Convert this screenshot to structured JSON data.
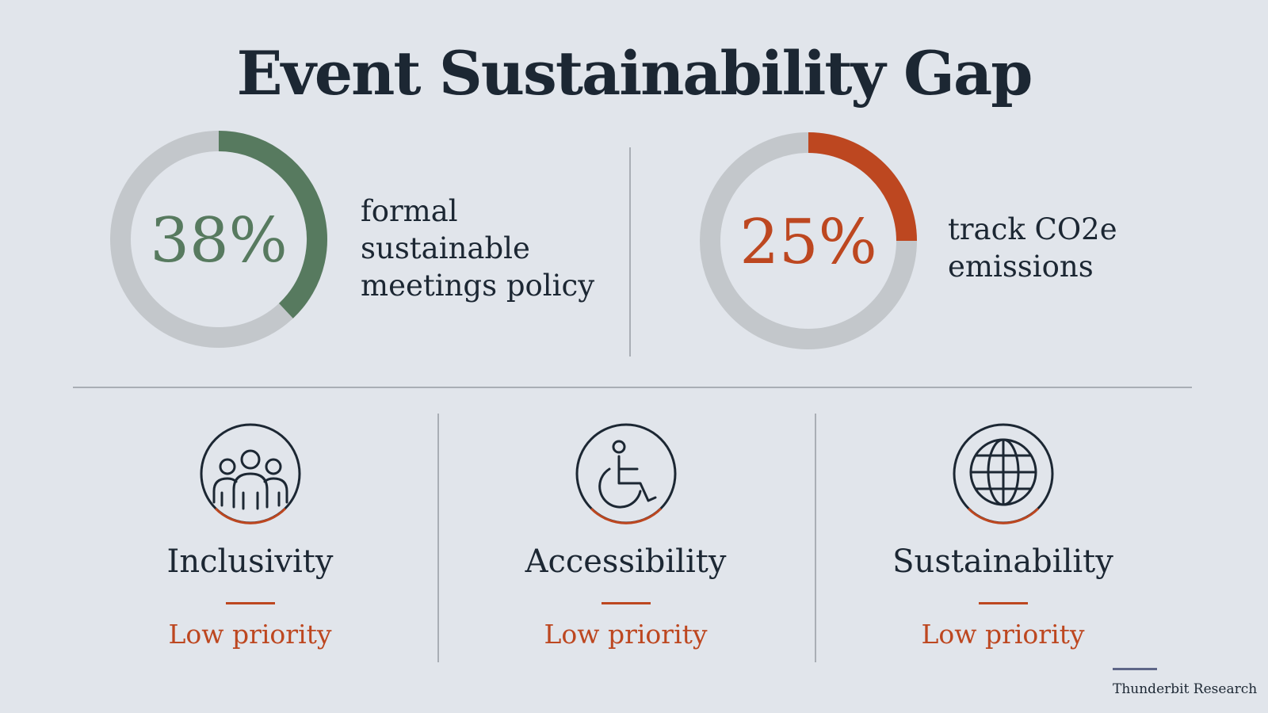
{
  "title": "Event Sustainability Gap",
  "colors": {
    "background": "#e1e5eb",
    "track": "#c3c7cb",
    "green": "#577a5f",
    "orange": "#bd4720",
    "ink": "#1c2733",
    "source_rule": "#5e6688"
  },
  "chart_data": [
    {
      "type": "pie",
      "value_percent": 38,
      "value_label": "38%",
      "label_lines": [
        "formal",
        "sustainable",
        "meetings policy"
      ],
      "color": "#577a5f"
    },
    {
      "type": "pie",
      "value_percent": 25,
      "value_label": "25%",
      "label_lines": [
        "track CO2e",
        "emissions"
      ],
      "color": "#bd4720"
    }
  ],
  "priorities": [
    {
      "label": "Inclusivity",
      "status": "Low priority",
      "icon": "people-group-icon"
    },
    {
      "label": "Accessibility",
      "status": "Low priority",
      "icon": "wheelchair-icon"
    },
    {
      "label": "Sustainability",
      "status": "Low priority",
      "icon": "globe-icon"
    }
  ],
  "source": "Thunderbit Research"
}
